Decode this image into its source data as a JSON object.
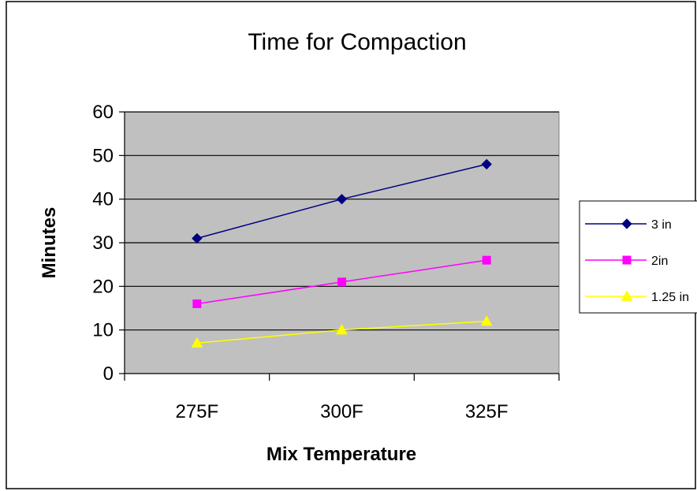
{
  "chart_data": {
    "type": "line",
    "title": "Time for Compaction",
    "xlabel": "Mix Temperature",
    "ylabel": "Minutes",
    "categories": [
      "275F",
      "300F",
      "325F"
    ],
    "ylim": [
      0,
      60
    ],
    "yticks": [
      0,
      10,
      20,
      30,
      40,
      50,
      60
    ],
    "grid": true,
    "legend_position": "right",
    "plot_background": "#c0c0c0",
    "series": [
      {
        "name": "3 in",
        "values": [
          31,
          40,
          48
        ],
        "color": "#000080",
        "marker": "diamond"
      },
      {
        "name": "2in",
        "values": [
          16,
          21,
          26
        ],
        "color": "#ff00ff",
        "marker": "square"
      },
      {
        "name": "1.25 in",
        "values": [
          7,
          10,
          12
        ],
        "color": "#ffff00",
        "marker": "triangle"
      }
    ]
  }
}
